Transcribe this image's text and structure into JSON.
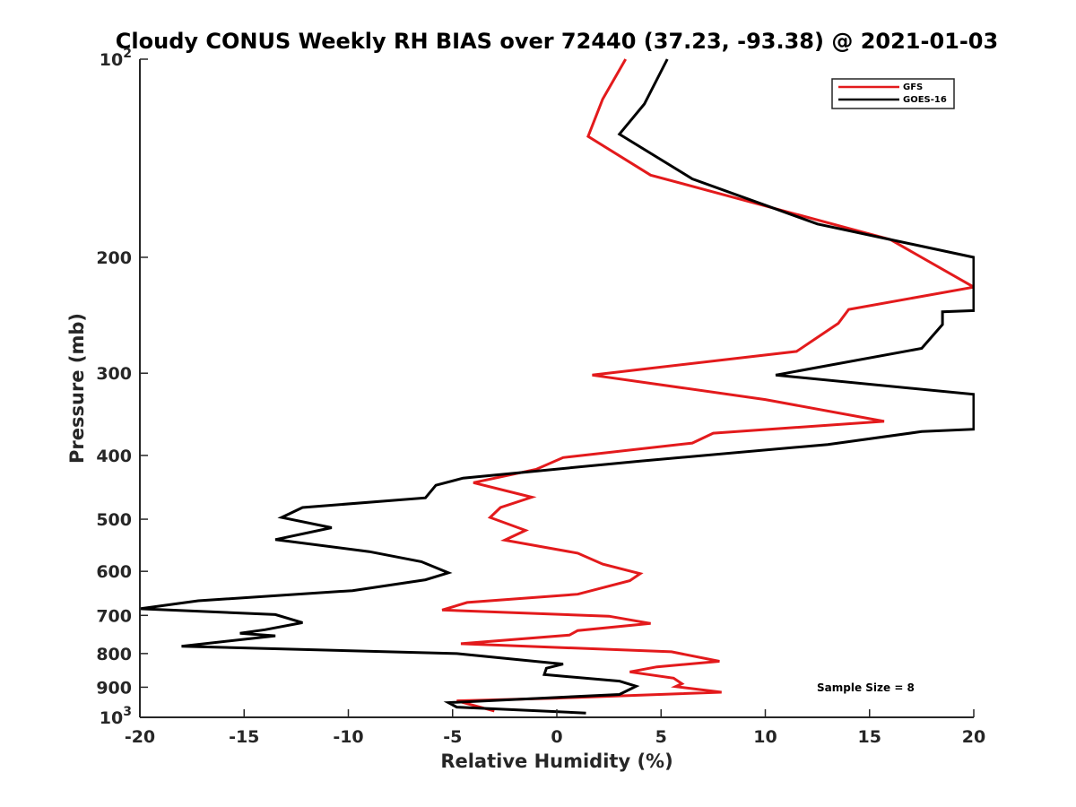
{
  "chart_data": {
    "type": "line",
    "title": "Cloudy CONUS Weekly RH BIAS over 72440 (37.23, -93.38) @ 2021-01-03",
    "xlabel": "Relative Humidity (%)",
    "ylabel": "Pressure (mb)",
    "xlim": [
      -20,
      20
    ],
    "ylim": [
      100,
      1000
    ],
    "y_scale": "log",
    "y_reversed": true,
    "x_ticks": [
      "-20",
      "-15",
      "-10",
      "-5",
      "0",
      "5",
      "10",
      "15",
      "20"
    ],
    "y_ticks": [
      {
        "value": 100,
        "base": "10",
        "exp": "2"
      },
      {
        "value": 200,
        "label": "200"
      },
      {
        "value": 300,
        "label": "300"
      },
      {
        "value": 400,
        "label": "400"
      },
      {
        "value": 500,
        "label": "500"
      },
      {
        "value": 600,
        "label": "600"
      },
      {
        "value": 700,
        "label": "700"
      },
      {
        "value": 800,
        "label": "800"
      },
      {
        "value": 900,
        "label": "900"
      },
      {
        "value": 1000,
        "base": "10",
        "exp": "3"
      }
    ],
    "grid": false,
    "legend_position": "top-right",
    "series": [
      {
        "name": "GFS",
        "color": "#e31a1c",
        "points": [
          [
            3.3,
            100
          ],
          [
            2.2,
            115
          ],
          [
            1.5,
            131
          ],
          [
            4.5,
            150
          ],
          [
            16,
            188
          ],
          [
            20,
            222
          ],
          [
            14,
            240
          ],
          [
            13.5,
            252
          ],
          [
            11.5,
            278
          ],
          [
            1.7,
            302
          ],
          [
            10,
            329
          ],
          [
            15.7,
            355
          ],
          [
            7.5,
            370
          ],
          [
            6.5,
            383
          ],
          [
            0.3,
            403
          ],
          [
            -1,
            420
          ],
          [
            -4,
            440
          ],
          [
            -1.2,
            463
          ],
          [
            -2.7,
            480
          ],
          [
            -3.2,
            497
          ],
          [
            -1.5,
            520
          ],
          [
            -2.5,
            538
          ],
          [
            1,
            563
          ],
          [
            2.2,
            585
          ],
          [
            4,
            605
          ],
          [
            3.5,
            620
          ],
          [
            1,
            650
          ],
          [
            -4.3,
            669
          ],
          [
            -5.5,
            687
          ],
          [
            2.5,
            702
          ],
          [
            4.5,
            720
          ],
          [
            1,
            738
          ],
          [
            0.6,
            750
          ],
          [
            -4.6,
            773
          ],
          [
            5.5,
            795
          ],
          [
            7.8,
            822
          ],
          [
            4.8,
            838
          ],
          [
            3.5,
            853
          ],
          [
            5.6,
            872
          ],
          [
            6,
            889
          ],
          [
            5.7,
            898
          ],
          [
            7.9,
            916
          ],
          [
            0,
            935
          ],
          [
            -4.8,
            944
          ],
          [
            -3,
            978
          ]
        ]
      },
      {
        "name": "GOES-16",
        "color": "#000000",
        "points": [
          [
            5.3,
            100
          ],
          [
            4.2,
            117
          ],
          [
            3,
            130
          ],
          [
            6.5,
            152
          ],
          [
            12.5,
            178
          ],
          [
            20,
            200
          ],
          [
            20,
            225
          ],
          [
            20,
            241
          ],
          [
            18.5,
            242
          ],
          [
            18.5,
            253
          ],
          [
            17.5,
            275
          ],
          [
            10.5,
            302
          ],
          [
            20,
            323
          ],
          [
            20,
            365
          ],
          [
            17.5,
            368
          ],
          [
            13,
            385
          ],
          [
            4,
            408
          ],
          [
            -4.5,
            433
          ],
          [
            -5.8,
            444
          ],
          [
            -6.3,
            464
          ],
          [
            -12.2,
            480
          ],
          [
            -13.2,
            497
          ],
          [
            -10.8,
            515
          ],
          [
            -13.5,
            537
          ],
          [
            -9,
            560
          ],
          [
            -6.5,
            580
          ],
          [
            -5.2,
            603
          ],
          [
            -6.3,
            618
          ],
          [
            -9.8,
            642
          ],
          [
            -17.2,
            665
          ],
          [
            -20,
            684
          ],
          [
            -13.5,
            698
          ],
          [
            -12.2,
            718
          ],
          [
            -14,
            736
          ],
          [
            -15.2,
            745
          ],
          [
            -13.5,
            752
          ],
          [
            -18,
            780
          ],
          [
            -4.8,
            800
          ],
          [
            0.3,
            830
          ],
          [
            -0.5,
            842
          ],
          [
            -0.6,
            861
          ],
          [
            3,
            881
          ],
          [
            3.8,
            897
          ],
          [
            3,
            923
          ],
          [
            -5.2,
            950
          ],
          [
            -4.8,
            965
          ],
          [
            1.4,
            985
          ]
        ]
      }
    ],
    "annotation": "Sample Size = 8"
  }
}
